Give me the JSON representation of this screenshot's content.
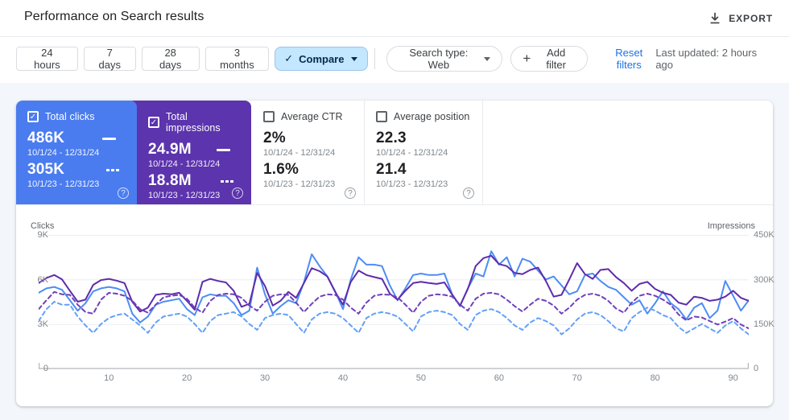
{
  "header": {
    "title": "Performance on Search results",
    "export_label": "EXPORT"
  },
  "filters": {
    "date_ranges": [
      "24 hours",
      "7 days",
      "28 days",
      "3 months"
    ],
    "compare_label": "Compare",
    "search_type_label": "Search type: Web",
    "add_filter_label": "Add filter",
    "add_filter_plus": "+",
    "compare_check": "✓",
    "reset_label": "Reset filters",
    "last_updated": "Last updated: 2 hours ago"
  },
  "metrics": {
    "cards": [
      {
        "label": "Total clicks",
        "checked": true,
        "color": "#4a7cf0",
        "current": "486K",
        "current_range": "10/1/24 - 12/31/24",
        "previous": "305K",
        "previous_range": "10/1/23 - 12/31/23",
        "help": "?"
      },
      {
        "label": "Total impressions",
        "checked": true,
        "color": "#5c34ad",
        "current": "24.9M",
        "current_range": "10/1/24 - 12/31/24",
        "previous": "18.8M",
        "previous_range": "10/1/23 - 12/31/23",
        "help": "?"
      },
      {
        "label": "Average CTR",
        "checked": false,
        "current": "2%",
        "current_range": "10/1/24 - 12/31/24",
        "previous": "1.6%",
        "previous_range": "10/1/23 - 12/31/23",
        "help": "?"
      },
      {
        "label": "Average position",
        "checked": false,
        "current": "22.3",
        "current_range": "10/1/24 - 12/31/24",
        "previous": "21.4",
        "previous_range": "10/1/23 - 12/31/23",
        "help": "?"
      }
    ]
  },
  "chart_data": {
    "type": "line",
    "title": "Clicks and impressions over time, current vs previous period",
    "x_axis": {
      "unit": "day index of quarter",
      "range": [
        1,
        92
      ],
      "label_ticks": [
        10,
        20,
        30,
        40,
        50,
        60,
        70,
        80,
        90
      ]
    },
    "left_axis": {
      "title": "Clicks",
      "ticks": [
        "9K",
        "6K",
        "3K",
        "0"
      ],
      "max_k": 9
    },
    "right_axis": {
      "title": "Impressions",
      "ticks": [
        "450K",
        "300K",
        "150K",
        "0"
      ],
      "max_k": 450
    },
    "grid": "horizontal only",
    "legend_position": "in metric cards (solid = current period, dashed = previous period)",
    "series": [
      {
        "id": "clicks-current",
        "name": "Total clicks 10/1/24 - 12/31/24",
        "axis": "left",
        "units": "thousands",
        "dashed": false,
        "color": "#4c8df5",
        "values": [
          5.1,
          5.4,
          5.5,
          5.3,
          4.6,
          3.9,
          4.4,
          5.2,
          5.4,
          5.5,
          5.4,
          5.2,
          3.7,
          3.1,
          3.5,
          4.3,
          4.5,
          4.6,
          4.7,
          4.0,
          3.6,
          4.8,
          5.0,
          4.9,
          4.9,
          4.4,
          3.6,
          3.9,
          6.8,
          5.0,
          3.7,
          4.2,
          4.6,
          4.4,
          5.8,
          7.7,
          6.9,
          6.2,
          5.2,
          4.0,
          6.0,
          7.5,
          7.0,
          7.0,
          6.9,
          5.6,
          4.6,
          5.4,
          6.3,
          6.4,
          6.3,
          6.3,
          6.4,
          5.0,
          4.2,
          5.4,
          6.4,
          6.2,
          7.9,
          7.0,
          7.5,
          6.2,
          7.4,
          7.2,
          6.6,
          6.0,
          6.2,
          5.6,
          5.0,
          5.2,
          6.3,
          6.4,
          5.9,
          5.5,
          5.3,
          4.8,
          4.3,
          4.6,
          3.7,
          4.4,
          5.2,
          4.4,
          4.0,
          3.3,
          4.1,
          4.4,
          3.4,
          3.9,
          5.9,
          4.9,
          3.9,
          4.6
        ]
      },
      {
        "id": "impressions-current",
        "name": "Total impressions 10/1/24 - 12/31/24",
        "axis": "right",
        "units": "thousands",
        "dashed": false,
        "color": "#5e2cab",
        "values": [
          288,
          305,
          315,
          300,
          262,
          225,
          232,
          282,
          298,
          302,
          296,
          288,
          225,
          192,
          205,
          248,
          252,
          250,
          255,
          228,
          198,
          292,
          302,
          295,
          290,
          262,
          208,
          218,
          322,
          278,
          212,
          228,
          258,
          238,
          288,
          338,
          328,
          310,
          258,
          215,
          292,
          330,
          315,
          308,
          302,
          252,
          232,
          262,
          288,
          292,
          288,
          285,
          290,
          248,
          212,
          268,
          345,
          372,
          380,
          352,
          345,
          322,
          318,
          332,
          340,
          295,
          242,
          248,
          300,
          355,
          318,
          302,
          332,
          335,
          308,
          288,
          262,
          285,
          292,
          268,
          255,
          248,
          222,
          215,
          242,
          238,
          228,
          232,
          242,
          262,
          238,
          228
        ]
      },
      {
        "id": "clicks-previous",
        "name": "Total clicks 10/1/23 - 12/31/23",
        "axis": "left",
        "units": "thousands",
        "dashed": true,
        "color": "#64a1f6",
        "values": [
          3.2,
          4.0,
          4.5,
          4.3,
          4.3,
          3.5,
          2.9,
          2.4,
          3.0,
          3.4,
          3.6,
          3.7,
          3.3,
          2.9,
          2.4,
          3.1,
          3.5,
          3.6,
          3.7,
          3.5,
          3.0,
          2.4,
          3.2,
          3.6,
          3.7,
          3.8,
          3.5,
          3.0,
          2.6,
          3.4,
          3.6,
          3.7,
          3.6,
          3.0,
          2.4,
          3.3,
          3.7,
          3.8,
          3.7,
          3.4,
          2.9,
          2.4,
          3.4,
          3.7,
          3.8,
          3.7,
          3.5,
          3.0,
          2.5,
          3.5,
          3.8,
          3.9,
          3.8,
          3.6,
          3.0,
          2.6,
          3.6,
          3.9,
          4.0,
          3.8,
          3.4,
          2.9,
          2.6,
          3.1,
          3.4,
          3.2,
          2.9,
          2.3,
          2.7,
          3.3,
          3.7,
          3.8,
          3.6,
          3.2,
          2.7,
          2.5,
          3.4,
          3.8,
          4.1,
          3.9,
          3.6,
          3.4,
          2.8,
          2.4,
          2.7,
          3.0,
          2.7,
          2.4,
          2.9,
          3.2,
          2.7,
          2.3
        ]
      },
      {
        "id": "impressions-previous",
        "name": "Total impressions 10/1/23 - 12/31/23",
        "axis": "right",
        "units": "thousands",
        "dashed": true,
        "color": "#7040bb",
        "values": [
          200,
          230,
          258,
          250,
          248,
          215,
          190,
          185,
          232,
          255,
          252,
          245,
          228,
          200,
          188,
          215,
          240,
          245,
          248,
          235,
          205,
          188,
          228,
          248,
          252,
          250,
          238,
          212,
          195,
          225,
          245,
          250,
          248,
          222,
          190,
          218,
          242,
          250,
          248,
          232,
          205,
          185,
          222,
          245,
          250,
          248,
          240,
          215,
          188,
          225,
          245,
          250,
          248,
          242,
          215,
          195,
          235,
          252,
          255,
          250,
          232,
          210,
          192,
          215,
          235,
          228,
          212,
          185,
          205,
          232,
          248,
          252,
          245,
          228,
          202,
          188,
          222,
          245,
          252,
          245,
          232,
          215,
          182,
          162,
          175,
          172,
          160,
          148,
          158,
          170,
          148,
          135
        ]
      }
    ]
  }
}
